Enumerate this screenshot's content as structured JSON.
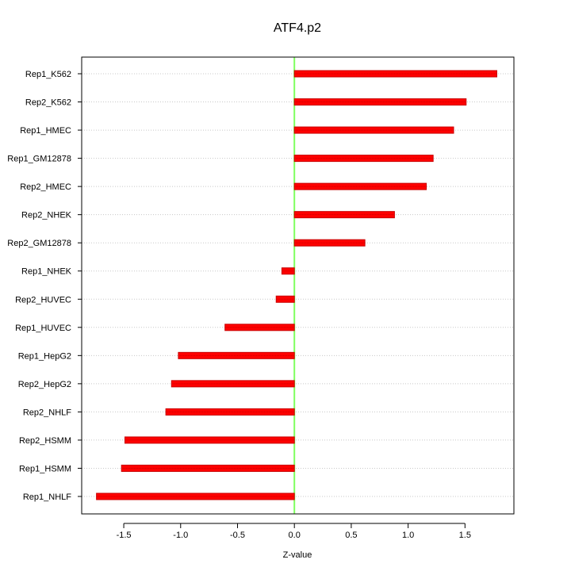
{
  "chart_data": {
    "type": "bar",
    "orientation": "horizontal",
    "title": "ATF4.p2",
    "xlabel": "Z-value",
    "ylabel": "",
    "xlim": [
      -1.87,
      1.93
    ],
    "x_ticks": [
      -1.5,
      -1.0,
      -0.5,
      0.0,
      0.5,
      1.0,
      1.5
    ],
    "x_tick_labels": [
      "-1.5",
      "-1.0",
      "-0.5",
      "0.0",
      "0.5",
      "1.0",
      "1.5"
    ],
    "grid": "horizontal dotted",
    "reference_line": 0,
    "categories": [
      "Rep1_K562",
      "Rep2_K562",
      "Rep1_HMEC",
      "Rep1_GM12878",
      "Rep2_HMEC",
      "Rep2_NHEK",
      "Rep2_GM12878",
      "Rep1_NHEK",
      "Rep2_HUVEC",
      "Rep1_HUVEC",
      "Rep1_HepG2",
      "Rep2_HepG2",
      "Rep2_NHLF",
      "Rep2_HSMM",
      "Rep1_HSMM",
      "Rep1_NHLF"
    ],
    "values": [
      1.78,
      1.51,
      1.4,
      1.22,
      1.16,
      0.88,
      0.62,
      -0.11,
      -0.16,
      -0.61,
      -1.02,
      -1.08,
      -1.13,
      -1.49,
      -1.52,
      -1.74
    ]
  },
  "colors": {
    "bar": "#ff0000",
    "bar_stripe": "#c80000",
    "zero_line": "#7fff5f",
    "grid": "#c8c8c8",
    "axis": "#000000"
  }
}
